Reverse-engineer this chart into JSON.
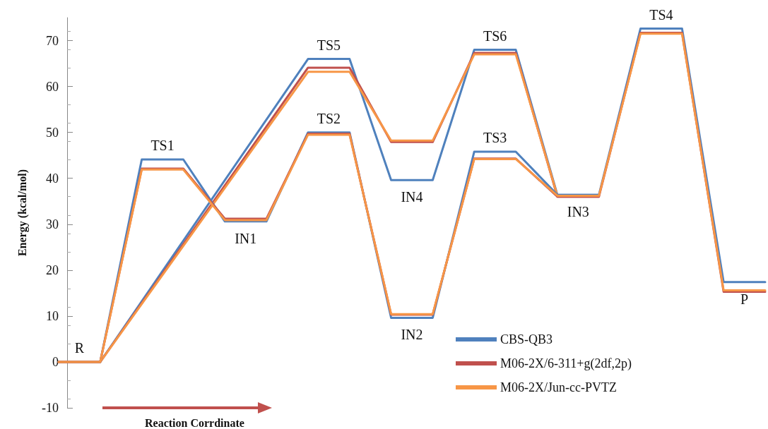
{
  "chart_data": {
    "type": "line",
    "xlabel": "Reaction Corrdinate",
    "ylabel": "Energy (kcal/mol)",
    "categories": [
      null,
      null,
      null,
      null,
      null,
      null,
      null,
      null,
      null,
      null,
      null,
      null,
      null,
      null,
      null,
      null,
      null,
      null
    ],
    "ylim": [
      -10,
      75
    ],
    "yticks": [
      -10,
      0,
      10,
      20,
      30,
      40,
      50,
      60,
      70
    ],
    "legend": "bottom right",
    "series": [
      {
        "color": "#4f81bd",
        "values": [
          0,
          0,
          null,
          null,
          null,
          null,
          66.0,
          66.0,
          39.6,
          39.6,
          68.0,
          68.0,
          36.4,
          36.4,
          null,
          null,
          null,
          null
        ],
        "value_labels": [
          null,
          null,
          null,
          null,
          null,
          null,
          "TS5",
          null,
          "IN4",
          null,
          "TS6",
          null,
          null,
          null,
          null,
          null,
          null,
          null
        ]
      },
      {
        "color": "#c0504d",
        "values": [
          0,
          0,
          null,
          null,
          null,
          null,
          64.1,
          64.1,
          47.9,
          47.9,
          67.3,
          67.3,
          36.0,
          36.0,
          null,
          null,
          null,
          null
        ]
      },
      {
        "color": "#f79646",
        "values": [
          0,
          0,
          null,
          null,
          null,
          null,
          63.2,
          63.2,
          48.2,
          48.2,
          67.0,
          67.0,
          36.2,
          36.2,
          null,
          null,
          null,
          null
        ]
      },
      {
        "name": "CBS-QB3",
        "color": "#4f81bd",
        "values": [
          0,
          0,
          44.1,
          44.1,
          30.6,
          30.6,
          50.0,
          50.0,
          9.6,
          9.6,
          45.8,
          45.8,
          36.4,
          36.4,
          72.6,
          72.6,
          17.4,
          17.4
        ],
        "value_labels": [
          "R",
          null,
          "TS1",
          null,
          "IN1",
          null,
          "TS2",
          null,
          "IN2",
          null,
          "TS3",
          null,
          "IN3",
          null,
          "TS4",
          null,
          "P",
          null
        ]
      },
      {
        "name": "M06-2X/6-311+g(2df,2p)",
        "color": "#c0504d",
        "values": [
          0,
          0,
          42.1,
          42.1,
          31.2,
          31.2,
          49.7,
          49.7,
          10.3,
          10.3,
          44.3,
          44.3,
          36.0,
          36.0,
          71.7,
          71.7,
          15.3,
          15.3
        ]
      },
      {
        "name": "M06-2X/Jun-cc-PVTZ",
        "color": "#f79646",
        "values": [
          0,
          0,
          41.9,
          41.9,
          30.9,
          30.9,
          49.5,
          49.5,
          10.4,
          10.4,
          44.2,
          44.2,
          36.2,
          36.2,
          71.5,
          71.5,
          15.6,
          15.6
        ]
      }
    ]
  }
}
